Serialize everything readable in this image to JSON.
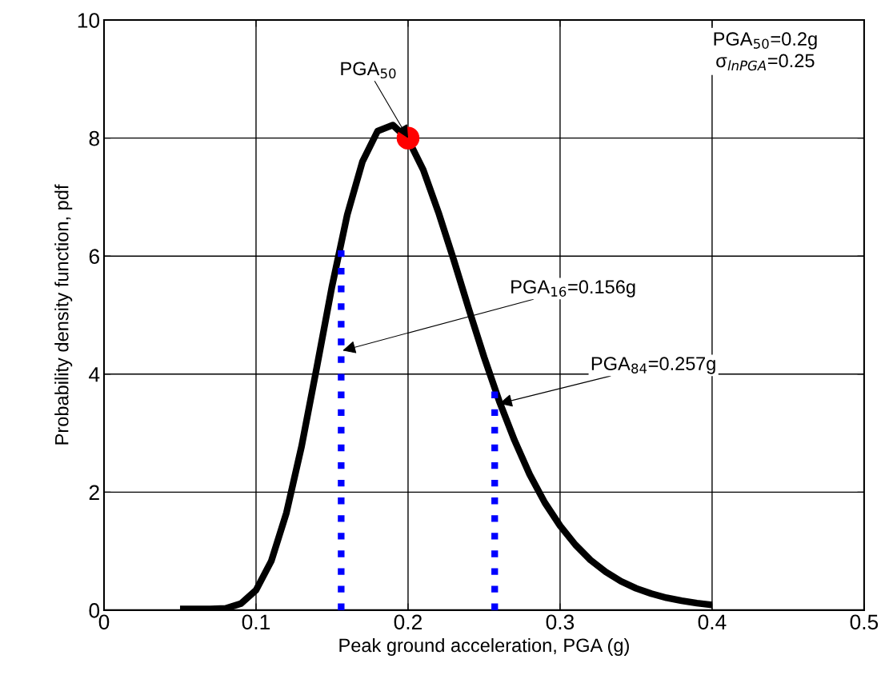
{
  "chart_data": {
    "type": "line",
    "xlabel": "Peak ground acceleration, PGA (g)",
    "ylabel": "Probability density function, pdf",
    "xlim": [
      0,
      0.5
    ],
    "xticks": [
      0,
      0.1,
      0.2,
      0.3,
      0.4,
      0.5
    ],
    "ylim": [
      0,
      10
    ],
    "yticks": [
      0,
      2,
      4,
      6,
      8,
      10
    ],
    "grid": true,
    "series": [
      {
        "color": "#000000",
        "line_style": "solid",
        "marker": "none",
        "x": [
          0.05,
          0.06,
          0.07,
          0.08,
          0.09,
          0.1,
          0.11,
          0.12,
          0.13,
          0.14,
          0.15,
          0.16,
          0.17,
          0.18,
          0.19,
          0.2,
          0.21,
          0.22,
          0.23,
          0.24,
          0.25,
          0.26,
          0.27,
          0.28,
          0.29,
          0.3,
          0.31,
          0.32,
          0.33,
          0.34,
          0.35,
          0.36,
          0.37,
          0.38,
          0.39,
          0.4
        ],
        "values": [
          0.02,
          0.02,
          0.02,
          0.03,
          0.11,
          0.34,
          0.83,
          1.65,
          2.78,
          4.12,
          5.49,
          6.7,
          7.6,
          8.12,
          8.22,
          7.98,
          7.46,
          6.74,
          5.94,
          5.1,
          4.29,
          3.54,
          2.88,
          2.3,
          1.82,
          1.43,
          1.11,
          0.85,
          0.65,
          0.49,
          0.37,
          0.28,
          0.21,
          0.16,
          0.12,
          0.09
        ]
      },
      {
        "color": "#0000ff",
        "line_style": "dotted",
        "marker": "none",
        "x": [
          0.156,
          0.156
        ],
        "values": [
          0,
          6.2
        ]
      },
      {
        "color": "#0000ff",
        "line_style": "dotted",
        "marker": "none",
        "x": [
          0.257,
          0.257
        ],
        "values": [
          0,
          3.8
        ]
      },
      {
        "type": "scatter",
        "color": "#ff0000",
        "marker": "circle",
        "x": [
          0.2
        ],
        "values": [
          8
        ]
      }
    ],
    "annotations": [
      {
        "text": "PGA$_{50}$",
        "x": 0.2,
        "y": 8
      },
      {
        "text": "PGA$_{16}$=0.156g",
        "x": 0.157,
        "y": 4.4
      },
      {
        "text": "PGA$_{84}$=0.257g",
        "x": 0.26,
        "y": 3.5
      },
      "PGA$_{50}$=0.2g\nσ$_{lnPGA}$=0.25"
    ]
  }
}
